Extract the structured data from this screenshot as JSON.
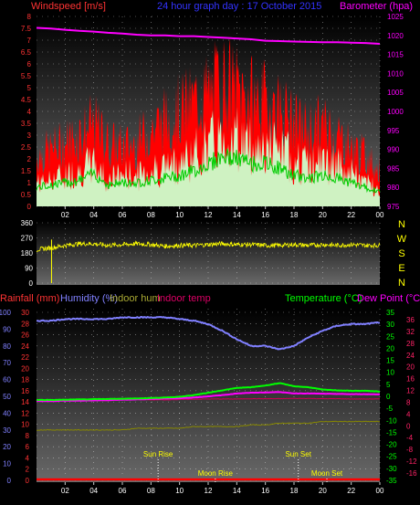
{
  "header": {
    "left_label": "Windspeed [m/s]",
    "center_title": "24 hour graph day : 17 October 2015",
    "right_label": "Barometer (hpa)"
  },
  "x_axis": {
    "ticks": [
      "02",
      "04",
      "06",
      "08",
      "10",
      "12",
      "14",
      "16",
      "18",
      "20",
      "22",
      "00"
    ]
  },
  "colors": {
    "windspeed": "#ff0000",
    "gust_fill": "#ccffcc",
    "avg_wind": "#00cc00",
    "barometer": "#ff00ff",
    "wind_direction": "#ffff00",
    "humidity": "#8080ff",
    "temperature": "#00ff00",
    "dewpoint": "#ff00ff",
    "indoor_hum": "#888800",
    "indoor_temp": "#cc0055",
    "rainfall": "#ff0000",
    "grid": "#ffffff",
    "event_label": "#ffff00"
  },
  "chart_data": [
    {
      "type": "line",
      "title": "24 hour graph day : 17 October 2015",
      "left_axis": {
        "label": "Windspeed [m/s]",
        "range": [
          0,
          8
        ],
        "ticks": [
          "0",
          "0.5",
          "1",
          "1.5",
          "2",
          "2.5",
          "3",
          "3.5",
          "4",
          "4.5",
          "5",
          "5.5",
          "6",
          "6.5",
          "7",
          "7.5",
          "8"
        ]
      },
      "right_axis": {
        "label": "Barometer (hpa)",
        "range": [
          975,
          1025
        ],
        "ticks": [
          "975",
          "980",
          "985",
          "990",
          "995",
          "1000",
          "1005",
          "1010",
          "1015",
          "1020",
          "1025"
        ]
      },
      "x": [
        0,
        1,
        2,
        3,
        4,
        5,
        6,
        7,
        8,
        9,
        10,
        11,
        12,
        13,
        14,
        15,
        16,
        17,
        18,
        19,
        20,
        21,
        22,
        23,
        24
      ],
      "series": [
        {
          "name": "Windspeed",
          "values": [
            1.2,
            1.4,
            1.5,
            1.8,
            2.1,
            1.3,
            1.6,
            1.5,
            1.8,
            2.0,
            2.2,
            2.5,
            3.0,
            3.5,
            3.4,
            3.0,
            3.0,
            2.8,
            2.2,
            2.0,
            2.2,
            2.0,
            1.6,
            1.2,
            0.9
          ]
        },
        {
          "name": "Gust",
          "values": [
            2.2,
            2.5,
            2.8,
            3.2,
            3.6,
            2.8,
            2.6,
            2.8,
            3.4,
            3.8,
            4.2,
            4.6,
            5.0,
            5.5,
            5.2,
            4.8,
            4.6,
            4.4,
            3.6,
            3.4,
            3.6,
            3.2,
            2.6,
            2.2,
            1.6
          ]
        },
        {
          "name": "Average",
          "values": [
            0.8,
            0.9,
            1.0,
            1.1,
            1.4,
            0.9,
            1.0,
            1.0,
            1.1,
            1.2,
            1.3,
            1.5,
            1.8,
            2.1,
            2.0,
            1.8,
            1.8,
            1.6,
            1.3,
            1.2,
            1.3,
            1.2,
            1.0,
            0.8,
            0.6
          ]
        },
        {
          "name": "Barometer",
          "values": [
            1022,
            1021.8,
            1021.5,
            1021.2,
            1021,
            1020.7,
            1020.5,
            1020.2,
            1020,
            1020,
            1019.8,
            1019.8,
            1019.6,
            1019.4,
            1019.2,
            1019,
            1018.6,
            1018.5,
            1018.4,
            1018.3,
            1018.2,
            1018.2,
            1018.1,
            1018,
            1017.8
          ]
        }
      ]
    },
    {
      "type": "line",
      "left_axis": {
        "label": "",
        "range": [
          0,
          360
        ],
        "ticks": [
          "0",
          "90",
          "180",
          "270",
          "360"
        ]
      },
      "right_axis": {
        "labels": [
          "N",
          "W",
          "S",
          "E",
          "N"
        ]
      },
      "x": [
        0,
        1,
        2,
        3,
        4,
        5,
        6,
        7,
        8,
        9,
        10,
        11,
        12,
        13,
        14,
        15,
        16,
        17,
        18,
        19,
        20,
        21,
        22,
        23,
        24
      ],
      "series": [
        {
          "name": "Wind Direction",
          "values": [
            200,
            210,
            225,
            235,
            235,
            225,
            230,
            235,
            230,
            220,
            225,
            225,
            230,
            235,
            230,
            230,
            225,
            225,
            230,
            225,
            230,
            225,
            230,
            225,
            225
          ]
        }
      ]
    },
    {
      "type": "line",
      "labels": {
        "rainfall": "Rainfall (mm)",
        "humidity": "Humidity (%)",
        "indoor_hum": "Indoor hum",
        "indoor_temp": "Indoor temp",
        "temperature": "Temperature (°C)",
        "dewpoint": "Dew Point (°C)"
      },
      "humidity_axis": {
        "range": [
          0,
          100
        ],
        "ticks": [
          "0",
          "10",
          "20",
          "30",
          "40",
          "50",
          "60",
          "70",
          "80",
          "90",
          "100"
        ]
      },
      "rain_axis": {
        "range": [
          0,
          30
        ],
        "ticks": [
          "0",
          "2",
          "4",
          "6",
          "8",
          "10",
          "12",
          "14",
          "16",
          "18",
          "20",
          "22",
          "24",
          "26",
          "28",
          "30"
        ]
      },
      "temp_axis": {
        "range": [
          -35,
          35
        ],
        "ticks": [
          "-35",
          "-30",
          "-25",
          "-20",
          "-15",
          "-10",
          "-5",
          "0",
          "5",
          "10",
          "15",
          "20",
          "25",
          "30",
          "35"
        ]
      },
      "indoor_temp_axis": {
        "range": [
          -16,
          36
        ],
        "ticks": [
          "-16",
          "-12",
          "-8",
          "-4",
          "0",
          "4",
          "8",
          "12",
          "16",
          "20",
          "24",
          "28",
          "32",
          "36"
        ]
      },
      "x": [
        0,
        1,
        2,
        3,
        4,
        5,
        6,
        7,
        8,
        9,
        10,
        11,
        12,
        13,
        14,
        15,
        16,
        17,
        18,
        19,
        20,
        21,
        22,
        23,
        24
      ],
      "series": [
        {
          "name": "Humidity",
          "values": [
            95,
            95,
            96,
            96,
            96,
            96,
            97,
            97,
            97,
            97,
            96,
            95,
            93,
            89,
            84,
            80,
            80,
            78,
            80,
            85,
            89,
            92,
            93,
            93,
            94
          ]
        },
        {
          "name": "Temperature",
          "values": [
            -1.5,
            -1.5,
            -1.4,
            -1.3,
            -1.2,
            -1.1,
            -1,
            -0.9,
            -0.7,
            -0.5,
            -0.2,
            0.5,
            1.5,
            2.5,
            3.5,
            3.8,
            4.5,
            5.5,
            4.2,
            3.8,
            2.8,
            2.5,
            2.3,
            2.3,
            2.0
          ]
        },
        {
          "name": "Dew Point",
          "values": [
            -2.0,
            -2.0,
            -1.8,
            -1.8,
            -1.7,
            -1.6,
            -1.4,
            -1.3,
            -1.1,
            -0.9,
            -0.8,
            -0.5,
            0.0,
            0.5,
            1.2,
            1.5,
            1.6,
            1.8,
            1.2,
            1.2,
            1.1,
            1.0,
            0.9,
            0.9,
            0.8
          ]
        },
        {
          "name": "Indoor hum",
          "values": [
            30,
            30,
            30,
            30,
            30,
            30,
            30,
            31,
            31,
            31,
            31,
            32,
            32,
            32,
            32,
            33,
            33,
            34,
            34,
            34,
            35,
            35,
            35,
            35,
            35
          ]
        },
        {
          "name": "Indoor temp",
          "values": [
            8.5,
            8.5,
            8.7,
            8.7,
            8.6,
            8.6,
            8.8,
            8.9,
            8.8,
            8.8,
            8.9,
            9.0,
            9.1,
            9.1,
            9.1,
            9.2,
            9.2,
            9.2,
            9.3,
            9.3,
            9.2,
            9.2,
            9.1,
            9.1,
            9.1
          ]
        },
        {
          "name": "Rainfall",
          "values": [
            0,
            0,
            0,
            0,
            0,
            0,
            0,
            0,
            0,
            0,
            0,
            0,
            0,
            0,
            0,
            0,
            0,
            0,
            0,
            0,
            0,
            0,
            0,
            0,
            0
          ]
        }
      ],
      "events": [
        {
          "label": "Sun Rise",
          "x": 8.5
        },
        {
          "label": "Moon Rise",
          "x": 12.5
        },
        {
          "label": "Sun Set",
          "x": 18.3
        },
        {
          "label": "Moon Set",
          "x": 20.3
        }
      ]
    }
  ]
}
